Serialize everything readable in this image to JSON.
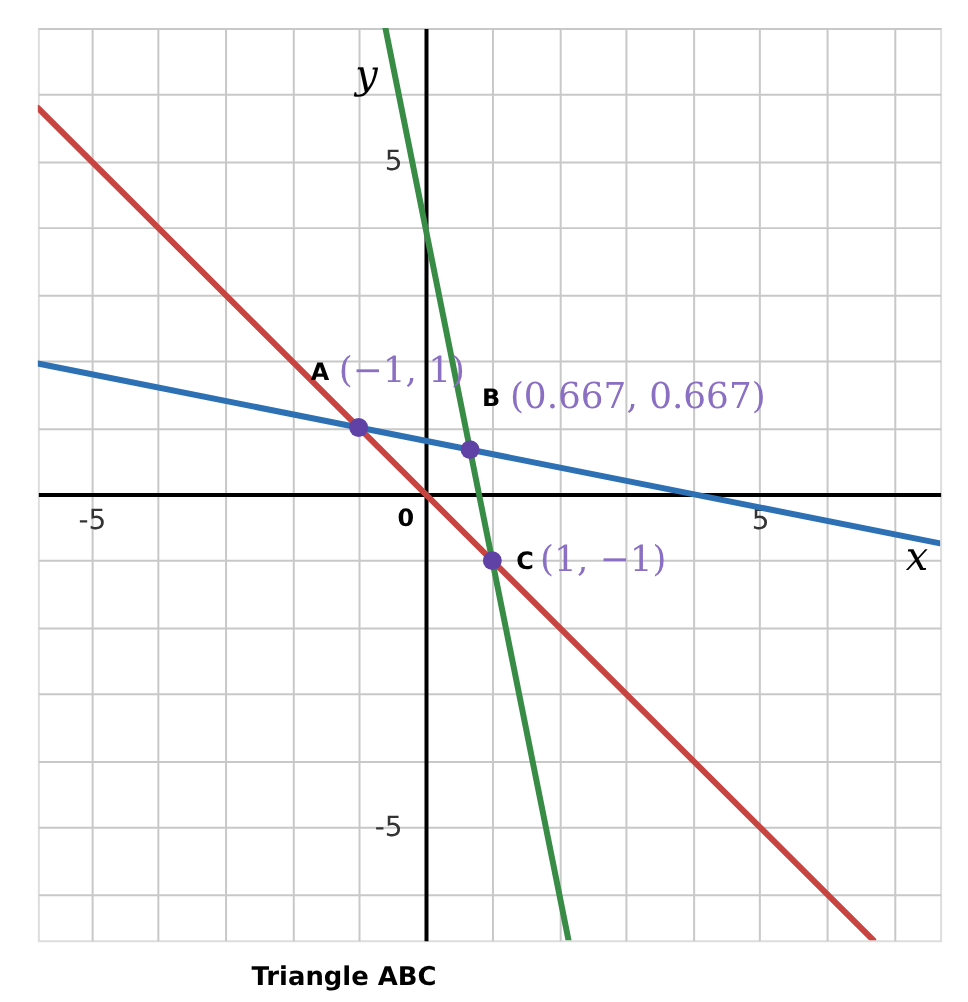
{
  "chart_data": {
    "type": "line",
    "title": "Triangle ABC",
    "xlabel": "x",
    "ylabel": "y",
    "xlim": [
      -5.8,
      7.7
    ],
    "ylim": [
      -6.7,
      7.0
    ],
    "xticks": [
      {
        "value": -5,
        "label": "-5"
      },
      {
        "value": -4,
        "label": null
      },
      {
        "value": -3,
        "label": null
      },
      {
        "value": -2,
        "label": null
      },
      {
        "value": -1,
        "label": null
      },
      {
        "value": 0,
        "label": null
      },
      {
        "value": 1,
        "label": null
      },
      {
        "value": 2,
        "label": null
      },
      {
        "value": 3,
        "label": null
      },
      {
        "value": 4,
        "label": null
      },
      {
        "value": 5,
        "label": "5"
      },
      {
        "value": 6,
        "label": null
      },
      {
        "value": 7,
        "label": null
      }
    ],
    "yticks": [
      {
        "value": -6,
        "label": null
      },
      {
        "value": -5,
        "label": "-5"
      },
      {
        "value": -4,
        "label": null
      },
      {
        "value": -3,
        "label": null
      },
      {
        "value": -2,
        "label": null
      },
      {
        "value": -1,
        "label": null
      },
      {
        "value": 0,
        "label": null
      },
      {
        "value": 1,
        "label": null
      },
      {
        "value": 2,
        "label": null
      },
      {
        "value": 3,
        "label": null
      },
      {
        "value": 4,
        "label": null
      },
      {
        "value": 5,
        "label": "5"
      },
      {
        "value": 6,
        "label": null
      },
      {
        "value": 7,
        "label": null
      }
    ],
    "grid": true,
    "series": [
      {
        "type": "line",
        "color": "#c74440",
        "x": [
          -5.8,
          6.7
        ],
        "values": [
          5.8,
          -6.7
        ]
      },
      {
        "type": "line",
        "color": "#2d70b3",
        "x": [
          -5.8,
          7.7
        ],
        "values": [
          1.96,
          -0.74
        ]
      },
      {
        "type": "line",
        "color": "#388c46",
        "x": [
          -0.6,
          2.14
        ],
        "values": [
          7.0,
          -6.7
        ]
      },
      {
        "type": "scatter",
        "color": "#6042a6",
        "marker": "circle",
        "x": [
          -1,
          0.667,
          1
        ],
        "values": [
          1,
          0.667,
          -1
        ],
        "value_labels": [
          "(−1, 1)",
          "(0.667, 0.667)",
          "(1, −1)"
        ]
      }
    ],
    "annotations": [
      {
        "text": "A",
        "x": -1,
        "y": 1
      },
      {
        "text": "B",
        "x": 0.667,
        "y": 0.667
      },
      {
        "text": "C",
        "x": 1,
        "y": -1
      },
      {
        "text": "0",
        "x": 0,
        "y": 0
      }
    ]
  }
}
